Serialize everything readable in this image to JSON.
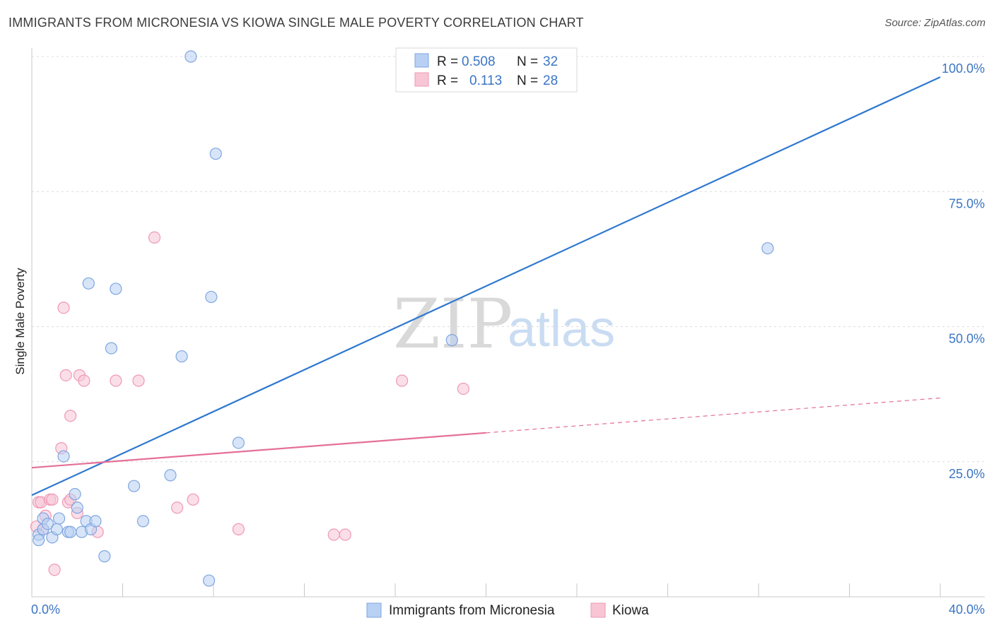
{
  "header": {
    "title": "IMMIGRANTS FROM MICRONESIA VS KIOWA SINGLE MALE POVERTY CORRELATION CHART",
    "source": "Source: ZipAtlas.com"
  },
  "watermark": {
    "part1": "ZIP",
    "part2": "atlas"
  },
  "legend": {
    "rows": [
      {
        "r_label": "R =",
        "r_value": "0.508",
        "n_label": "N =",
        "n_value": "32"
      },
      {
        "r_label": "R =",
        "r_value": "0.113",
        "n_label": "N =",
        "n_value": "28"
      }
    ]
  },
  "chart_data": {
    "type": "scatter",
    "title": "IMMIGRANTS FROM MICRONESIA VS KIOWA SINGLE MALE POVERTY CORRELATION CHART",
    "xlabel": "",
    "ylabel": "Single Male Poverty",
    "xlim": [
      0,
      40
    ],
    "ylim": [
      0,
      100
    ],
    "x_tick_labels": [
      "0.0%",
      "40.0%"
    ],
    "y_tick_labels": [
      {
        "value": 25,
        "label": "25.0%"
      },
      {
        "value": 50,
        "label": "50.0%"
      },
      {
        "value": 75,
        "label": "75.0%"
      },
      {
        "value": 100,
        "label": "100.0%"
      }
    ],
    "colors": {
      "blue_fill": "#b8d0f3",
      "blue_stroke": "#7fa6e0",
      "blue_line": "#2f78d0",
      "pink_fill": "#f8c5d5",
      "pink_stroke": "#ee98b5",
      "pink_line": "#e56f99"
    },
    "series": [
      {
        "name": "Immigrants from Micronesia",
        "color": "#b8d0f3",
        "r": 0.508,
        "n": 32,
        "trend": {
          "x0": 0,
          "y0": 18.8,
          "x1": 40,
          "y1": 96.2,
          "solid_until": 40
        },
        "points": [
          [
            0.3,
            11.5
          ],
          [
            0.3,
            10.5
          ],
          [
            0.5,
            12.5
          ],
          [
            0.5,
            14.5
          ],
          [
            0.7,
            13.5
          ],
          [
            0.9,
            11.0
          ],
          [
            1.1,
            12.5
          ],
          [
            1.2,
            14.5
          ],
          [
            1.4,
            26.0
          ],
          [
            1.6,
            12.0
          ],
          [
            1.7,
            12.0
          ],
          [
            1.9,
            19.0
          ],
          [
            2.0,
            16.5
          ],
          [
            2.2,
            12.0
          ],
          [
            2.4,
            14.0
          ],
          [
            2.5,
            58.0
          ],
          [
            2.6,
            12.5
          ],
          [
            2.8,
            14.0
          ],
          [
            3.2,
            7.5
          ],
          [
            3.5,
            46.0
          ],
          [
            3.7,
            57.0
          ],
          [
            4.5,
            20.5
          ],
          [
            4.9,
            14.0
          ],
          [
            6.1,
            22.5
          ],
          [
            6.6,
            44.5
          ],
          [
            7.0,
            100.0
          ],
          [
            7.8,
            3.0
          ],
          [
            7.9,
            55.5
          ],
          [
            8.1,
            82.0
          ],
          [
            9.1,
            28.5
          ],
          [
            18.5,
            47.5
          ],
          [
            32.4,
            64.5
          ]
        ]
      },
      {
        "name": "Kiowa",
        "color": "#f8c5d5",
        "r": 0.113,
        "n": 28,
        "trend": {
          "x0": 0,
          "y0": 23.9,
          "x1": 40,
          "y1": 36.8,
          "solid_until": 20
        },
        "points": [
          [
            0.2,
            13.0
          ],
          [
            0.3,
            17.5
          ],
          [
            0.4,
            17.5
          ],
          [
            0.5,
            12.5
          ],
          [
            0.6,
            15.0
          ],
          [
            0.8,
            18.0
          ],
          [
            0.9,
            18.0
          ],
          [
            1.0,
            5.0
          ],
          [
            1.3,
            27.5
          ],
          [
            1.4,
            53.5
          ],
          [
            1.5,
            41.0
          ],
          [
            1.6,
            17.5
          ],
          [
            1.7,
            33.5
          ],
          [
            1.7,
            18.0
          ],
          [
            2.0,
            15.5
          ],
          [
            2.1,
            41.0
          ],
          [
            2.3,
            40.0
          ],
          [
            2.9,
            12.0
          ],
          [
            3.7,
            40.0
          ],
          [
            4.7,
            40.0
          ],
          [
            5.4,
            66.5
          ],
          [
            6.4,
            16.5
          ],
          [
            7.1,
            18.0
          ],
          [
            9.1,
            12.5
          ],
          [
            13.3,
            11.5
          ],
          [
            13.8,
            11.5
          ],
          [
            16.3,
            40.0
          ],
          [
            19.0,
            38.5
          ]
        ]
      }
    ]
  }
}
